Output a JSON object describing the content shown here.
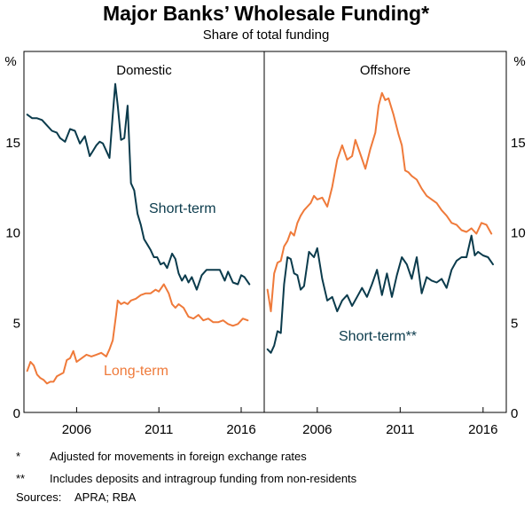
{
  "title": "Major Banks’ Wholesale Funding*",
  "subtitle": "Share of total funding",
  "notes": [
    {
      "mark": "*",
      "text": "Adjusted for movements in foreign exchange rates"
    },
    {
      "mark": "**",
      "text": "Includes deposits and intragroup funding from non-residents"
    }
  ],
  "sources": {
    "label": "Sources:",
    "text": "APRA; RBA"
  },
  "colors": {
    "short_term": "#0b3b4c",
    "long_term": "#ef7a3a",
    "axis": "#000000"
  },
  "chart_data": [
    {
      "type": "line",
      "panel": "Domestic",
      "title": "Domestic",
      "ylabel": "%",
      "ylim": [
        0,
        20
      ],
      "yticks": [
        0,
        5,
        10,
        15
      ],
      "xlim": [
        2002.8,
        2017.4
      ],
      "xticks": [
        2006,
        2011,
        2016
      ],
      "series": [
        {
          "name": "Short-term",
          "label": "Short-term",
          "color": "#0b3b4c",
          "x": [
            2003.0,
            2003.3,
            2003.6,
            2003.9,
            2004.2,
            2004.5,
            2004.8,
            2005.0,
            2005.3,
            2005.6,
            2005.9,
            2006.2,
            2006.5,
            2006.8,
            2007.0,
            2007.2,
            2007.4,
            2007.6,
            2007.8,
            2008.0,
            2008.2,
            2008.35,
            2008.5,
            2008.7,
            2008.9,
            2009.1,
            2009.3,
            2009.5,
            2009.7,
            2009.9,
            2010.1,
            2010.3,
            2010.5,
            2010.7,
            2010.9,
            2011.1,
            2011.3,
            2011.5,
            2011.8,
            2012.0,
            2012.2,
            2012.4,
            2012.6,
            2012.8,
            2013.0,
            2013.3,
            2013.6,
            2013.9,
            2014.2,
            2014.5,
            2014.7,
            2015.0,
            2015.2,
            2015.5,
            2015.8,
            2016.0,
            2016.2,
            2016.5
          ],
          "values": [
            16.5,
            16.3,
            16.3,
            16.2,
            15.9,
            15.6,
            15.5,
            15.2,
            15.0,
            15.7,
            15.6,
            14.9,
            15.3,
            14.2,
            14.5,
            14.8,
            15.0,
            14.9,
            14.5,
            14.1,
            16.5,
            18.2,
            17.0,
            15.1,
            15.2,
            17.0,
            12.7,
            12.3,
            11.0,
            10.4,
            9.6,
            9.3,
            9.0,
            8.6,
            8.6,
            8.2,
            8.3,
            8.0,
            8.8,
            8.5,
            7.7,
            7.3,
            7.6,
            7.2,
            7.5,
            6.8,
            7.6,
            7.9,
            7.9,
            7.9,
            7.9,
            7.3,
            7.8,
            7.2,
            7.1,
            7.6,
            7.5,
            7.1
          ]
        },
        {
          "name": "Long-term",
          "label": "Long-term",
          "color": "#ef7a3a",
          "x": [
            2003.0,
            2003.2,
            2003.4,
            2003.6,
            2003.8,
            2004.0,
            2004.2,
            2004.4,
            2004.6,
            2004.8,
            2005.0,
            2005.2,
            2005.4,
            2005.6,
            2005.8,
            2006.0,
            2006.3,
            2006.6,
            2006.9,
            2007.2,
            2007.5,
            2007.8,
            2008.0,
            2008.2,
            2008.4,
            2008.5,
            2008.7,
            2008.9,
            2009.1,
            2009.3,
            2009.6,
            2009.9,
            2010.2,
            2010.5,
            2010.8,
            2011.0,
            2011.3,
            2011.6,
            2011.8,
            2012.0,
            2012.2,
            2012.5,
            2012.8,
            2013.1,
            2013.4,
            2013.7,
            2014.0,
            2014.3,
            2014.6,
            2014.9,
            2015.2,
            2015.5,
            2015.8,
            2016.1,
            2016.4
          ],
          "values": [
            2.3,
            2.8,
            2.6,
            2.1,
            1.9,
            1.8,
            1.6,
            1.7,
            1.7,
            2.0,
            2.1,
            2.2,
            2.9,
            3.0,
            3.4,
            2.8,
            3.0,
            3.2,
            3.1,
            3.2,
            3.3,
            3.1,
            3.5,
            4.0,
            5.4,
            6.2,
            6.0,
            6.1,
            6.0,
            6.2,
            6.3,
            6.5,
            6.6,
            6.6,
            6.8,
            6.7,
            7.1,
            6.6,
            6.0,
            5.8,
            6.0,
            5.8,
            5.3,
            5.2,
            5.4,
            5.1,
            5.2,
            5.0,
            5.0,
            5.1,
            4.9,
            4.8,
            4.9,
            5.2,
            5.1
          ]
        }
      ]
    },
    {
      "type": "line",
      "panel": "Offshore",
      "title": "Offshore",
      "ylabel": "%",
      "ylim": [
        0,
        20
      ],
      "yticks": [
        0,
        5,
        10,
        15
      ],
      "xlim": [
        2002.8,
        2017.4
      ],
      "xticks": [
        2006,
        2011,
        2016
      ],
      "series": [
        {
          "name": "Long-term",
          "label": "",
          "color": "#ef7a3a",
          "x": [
            2003.0,
            2003.2,
            2003.4,
            2003.6,
            2003.8,
            2004.0,
            2004.2,
            2004.4,
            2004.6,
            2004.8,
            2005.0,
            2005.2,
            2005.4,
            2005.6,
            2005.8,
            2006.0,
            2006.3,
            2006.6,
            2006.9,
            2007.2,
            2007.5,
            2007.8,
            2008.1,
            2008.3,
            2008.6,
            2008.9,
            2009.2,
            2009.5,
            2009.7,
            2009.9,
            2010.1,
            2010.3,
            2010.6,
            2010.9,
            2011.1,
            2011.3,
            2011.5,
            2011.7,
            2012.0,
            2012.3,
            2012.6,
            2012.9,
            2013.2,
            2013.5,
            2013.8,
            2014.1,
            2014.4,
            2014.7,
            2015.0,
            2015.3,
            2015.6,
            2015.9,
            2016.2,
            2016.5
          ],
          "values": [
            6.8,
            5.6,
            7.7,
            8.3,
            8.4,
            9.2,
            9.5,
            10.0,
            9.8,
            10.5,
            10.9,
            11.2,
            11.4,
            11.6,
            12.0,
            11.8,
            11.9,
            11.4,
            12.5,
            14.0,
            14.8,
            14.0,
            14.2,
            15.1,
            14.3,
            13.5,
            14.6,
            15.5,
            17.0,
            17.7,
            17.3,
            17.4,
            16.5,
            15.4,
            14.8,
            13.4,
            13.3,
            13.1,
            12.9,
            12.4,
            12.0,
            11.8,
            11.6,
            11.2,
            10.9,
            10.5,
            10.4,
            10.1,
            10.0,
            10.2,
            9.9,
            10.5,
            10.4,
            9.9
          ]
        },
        {
          "name": "Short-term",
          "label": "Short-term**",
          "color": "#0b3b4c",
          "x": [
            2003.0,
            2003.2,
            2003.4,
            2003.6,
            2003.8,
            2004.0,
            2004.2,
            2004.4,
            2004.6,
            2004.8,
            2005.0,
            2005.2,
            2005.5,
            2005.8,
            2006.0,
            2006.3,
            2006.6,
            2006.9,
            2007.2,
            2007.5,
            2007.8,
            2008.1,
            2008.4,
            2008.7,
            2009.0,
            2009.3,
            2009.6,
            2009.9,
            2010.2,
            2010.5,
            2010.8,
            2011.1,
            2011.4,
            2011.7,
            2012.0,
            2012.3,
            2012.6,
            2012.9,
            2013.2,
            2013.5,
            2013.8,
            2014.1,
            2014.4,
            2014.7,
            2015.0,
            2015.3,
            2015.5,
            2015.7,
            2016.0,
            2016.3,
            2016.6
          ],
          "values": [
            3.5,
            3.3,
            3.7,
            4.5,
            4.4,
            7.1,
            8.6,
            8.5,
            7.7,
            7.6,
            6.8,
            7.0,
            8.9,
            8.6,
            9.1,
            7.4,
            6.2,
            6.4,
            5.6,
            6.2,
            6.5,
            5.9,
            6.4,
            6.9,
            6.4,
            7.1,
            7.9,
            6.5,
            7.7,
            6.4,
            7.6,
            8.6,
            8.2,
            7.4,
            8.6,
            6.6,
            7.5,
            7.3,
            7.2,
            7.4,
            6.9,
            7.9,
            8.4,
            8.6,
            8.6,
            9.8,
            8.7,
            8.9,
            8.7,
            8.6,
            8.2
          ]
        }
      ]
    }
  ]
}
